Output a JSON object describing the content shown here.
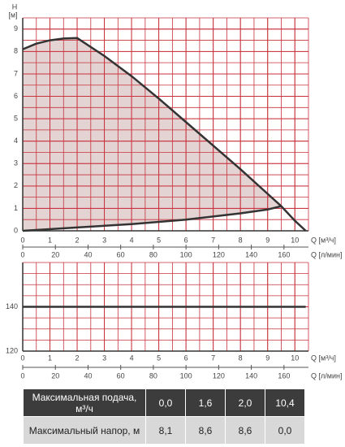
{
  "chart_data": [
    {
      "type": "line",
      "ylabel": "H",
      "yunit": "[м]",
      "xlabel": "Q [м³/ч]",
      "x2label": "Q [л/мин]",
      "xlim": [
        0,
        10.5
      ],
      "xticks": [
        0,
        1,
        2,
        3,
        4,
        5,
        6,
        7,
        8,
        9,
        10
      ],
      "x2lim": [
        0,
        175
      ],
      "x2ticks": [
        0,
        20,
        40,
        60,
        80,
        100,
        120,
        140,
        160
      ],
      "ylim": [
        0,
        9.5
      ],
      "yticks": [
        0,
        1,
        2,
        3,
        4,
        5,
        6,
        7,
        8,
        9
      ],
      "grid": true,
      "grid_color": "#c8323c",
      "xgrid_step": 0.5,
      "ygrid_step": 0.5,
      "fill_between": true,
      "fill_color": "#e3d3d3",
      "series": [
        {
          "color": "#333333",
          "x": [
            0,
            0.5,
            1,
            1.5,
            2,
            3,
            4,
            5,
            6,
            7,
            8,
            9,
            9.5,
            10,
            10.4
          ],
          "values": [
            8.1,
            8.35,
            8.5,
            8.58,
            8.6,
            7.8,
            6.9,
            5.9,
            4.85,
            3.8,
            2.75,
            1.65,
            1.1,
            0.45,
            0
          ]
        },
        {
          "color": "#333333",
          "x": [
            0,
            2,
            4,
            6,
            8,
            9,
            9.5
          ],
          "values": [
            0,
            0.15,
            0.3,
            0.5,
            0.78,
            0.95,
            1.1
          ]
        }
      ]
    },
    {
      "type": "line",
      "xlabel": "Q [м³/ч]",
      "x2label": "Q [л/мин]",
      "xlim": [
        0,
        10.5
      ],
      "xticks": [
        0,
        1,
        2,
        3,
        4,
        5,
        6,
        7,
        8,
        9,
        10
      ],
      "x2lim": [
        0,
        175
      ],
      "x2ticks": [
        0,
        20,
        40,
        60,
        80,
        100,
        120,
        140,
        160
      ],
      "ylim": [
        120,
        160
      ],
      "yticks": [
        120,
        140
      ],
      "grid": true,
      "grid_color": "#c8323c",
      "xgrid_step": 0.5,
      "ygrid_step": 5,
      "series": [
        {
          "color": "#333333",
          "x": [
            0,
            10.4
          ],
          "values": [
            140,
            140
          ]
        }
      ]
    }
  ],
  "table": {
    "rows": [
      [
        "Максимальная подача, м³/ч",
        "0,0",
        "1,6",
        "2,0",
        "10,4"
      ],
      [
        "Максимальный напор, м",
        "8,1",
        "8,6",
        "8,6",
        "0,0"
      ]
    ]
  }
}
